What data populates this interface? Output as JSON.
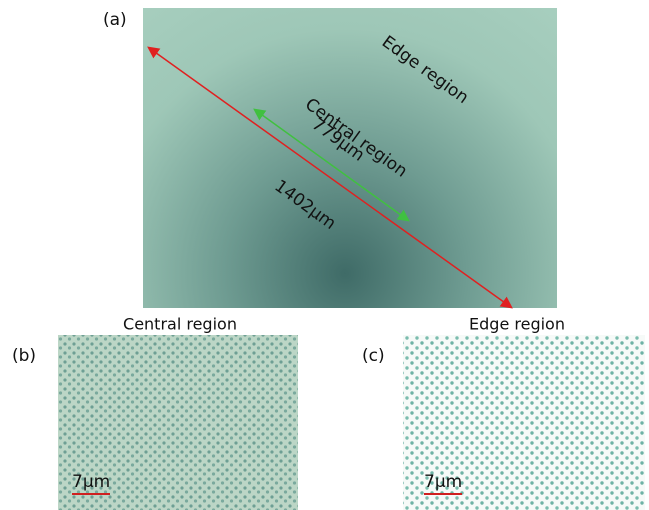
{
  "panels": [
    {
      "label": "(a)",
      "annotations": {
        "edge": "Edge region",
        "central": "Central region",
        "short_length": "779μm",
        "long_length": "1402μm"
      }
    },
    {
      "label": "(b)",
      "title": "Central region",
      "scale_bar": "7μm"
    },
    {
      "label": "(c)",
      "title": "Edge region",
      "scale_bar": "7μm"
    }
  ]
}
